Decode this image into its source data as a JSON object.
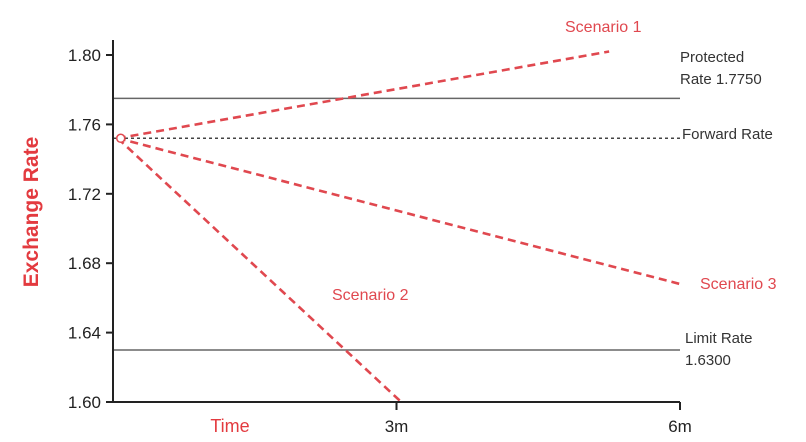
{
  "chart_data": {
    "type": "line",
    "title": "",
    "ylabel": "Exchange Rate",
    "xlabel": "Time",
    "ylim": [
      1.6,
      1.8
    ],
    "xlim": [
      0,
      6
    ],
    "y_ticks": [
      "1.80",
      "1.76",
      "1.72",
      "1.68",
      "1.64",
      "1.60"
    ],
    "y_tick_values": [
      1.8,
      1.76,
      1.72,
      1.68,
      1.64,
      1.6
    ],
    "x_ticks": [
      {
        "label": "3m",
        "value": 3
      },
      {
        "label": "6m",
        "value": 6
      }
    ],
    "start_point": {
      "x": 0.05,
      "y": 1.752
    },
    "reference_lines": [
      {
        "name": "protected",
        "value": 1.775,
        "style": "solid",
        "label_lines": [
          "Protected",
          "Rate 1.7750"
        ]
      },
      {
        "name": "forward",
        "value": 1.752,
        "style": "dotted",
        "label_lines": [
          "Forward Rate"
        ]
      },
      {
        "name": "limit",
        "value": 1.63,
        "style": "solid",
        "label_lines": [
          "Limit Rate",
          "1.6300"
        ]
      }
    ],
    "series": [
      {
        "name": "Scenario 1",
        "x": [
          0.05,
          5.25
        ],
        "y": [
          1.752,
          1.802
        ]
      },
      {
        "name": "Scenario 2",
        "x": [
          0.05,
          3.05
        ],
        "y": [
          1.752,
          1.6
        ]
      },
      {
        "name": "Scenario 3",
        "x": [
          0.05,
          6.0
        ],
        "y": [
          1.752,
          1.668
        ]
      }
    ],
    "colors": {
      "scenario": "#e0484f",
      "axis_title": "#e33a3f",
      "reference": "#666666",
      "axis": "#222222"
    },
    "grid": false
  }
}
